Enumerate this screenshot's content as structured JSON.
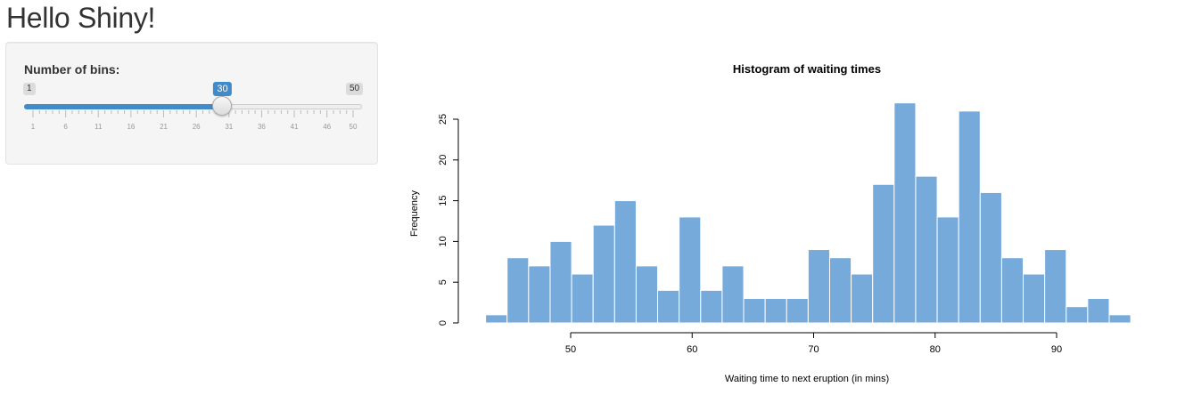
{
  "page": {
    "title": "Hello Shiny!"
  },
  "sidebar": {
    "slider": {
      "label": "Number of bins:",
      "min": 1,
      "max": 50,
      "value": 30,
      "min_label": "1",
      "max_label": "50",
      "value_label": "30",
      "grid_labels": [
        "1",
        "6",
        "11",
        "16",
        "21",
        "26",
        "31",
        "36",
        "41",
        "46",
        "50"
      ],
      "accent_color": "#428bca"
    }
  },
  "chart_data": {
    "type": "bar",
    "title": "Histogram of waiting times",
    "xlabel": "Waiting time to next eruption (in mins)",
    "ylabel": "Frequency",
    "bar_color": "#75aadb",
    "bin_start": 43,
    "bin_width": 1.77,
    "values": [
      1,
      8,
      7,
      10,
      6,
      12,
      15,
      7,
      4,
      13,
      4,
      7,
      3,
      3,
      3,
      9,
      8,
      6,
      17,
      27,
      18,
      13,
      26,
      16,
      8,
      6,
      9,
      2,
      3,
      1
    ],
    "xticks": [
      50,
      60,
      70,
      80,
      90
    ],
    "yticks": [
      0,
      5,
      10,
      15,
      20,
      25
    ],
    "ylim": [
      0,
      27
    ]
  }
}
